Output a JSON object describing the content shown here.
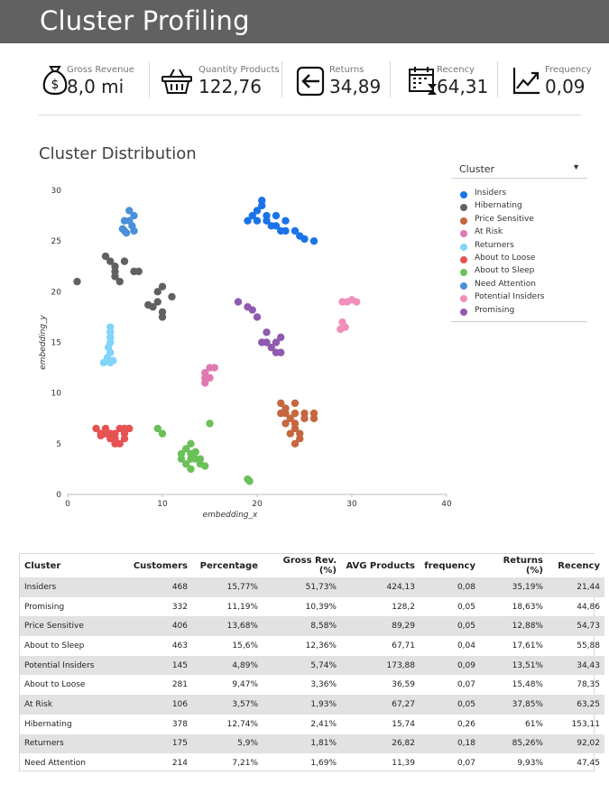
{
  "header": {
    "title": "Cluster Profiling"
  },
  "kpis": [
    {
      "label": "Gross Revenue",
      "value": "8,0 mi",
      "icon": "money-bag-icon"
    },
    {
      "label": "Quantity Products",
      "value": "122,76",
      "icon": "basket-icon"
    },
    {
      "label": "Returns",
      "value": "34,89",
      "icon": "return-arrow-icon"
    },
    {
      "label": "Recency",
      "value": "64,31",
      "icon": "calendar-icon"
    },
    {
      "label": "Frequency",
      "value": "0,09",
      "icon": "trend-chart-icon"
    }
  ],
  "section": {
    "title": "Cluster Distribution"
  },
  "legend": {
    "control_label": "Cluster",
    "items": [
      {
        "name": "Insiders",
        "color": "#1a73e8"
      },
      {
        "name": "Hibernating",
        "color": "#616161"
      },
      {
        "name": "Price Sensitive",
        "color": "#c5673f"
      },
      {
        "name": "At Risk",
        "color": "#e079b1"
      },
      {
        "name": "Returners",
        "color": "#81d4fa"
      },
      {
        "name": "About to Loose",
        "color": "#e55353"
      },
      {
        "name": "About to Sleep",
        "color": "#6cc05a"
      },
      {
        "name": "Need Attention",
        "color": "#4a90d9"
      },
      {
        "name": "Potential Insiders",
        "color": "#f18fba"
      },
      {
        "name": "Promising",
        "color": "#8e5bb0"
      }
    ]
  },
  "chart_data": {
    "type": "scatter",
    "xlabel": "embedding_x",
    "ylabel": "embedding_y",
    "xlim": [
      0,
      40
    ],
    "ylim": [
      0,
      30
    ],
    "xticks": [
      "0",
      "10",
      "20",
      "30",
      "40"
    ],
    "yticks": [
      "0",
      "5",
      "10",
      "15",
      "20",
      "25",
      "30"
    ],
    "series": [
      {
        "name": "Insiders",
        "points": [
          [
            19,
            27
          ],
          [
            19.5,
            27.5
          ],
          [
            20,
            28
          ],
          [
            20,
            27
          ],
          [
            20.5,
            28.5
          ],
          [
            21,
            27.5
          ],
          [
            21,
            27
          ],
          [
            22,
            27.5
          ],
          [
            22,
            26.5
          ],
          [
            23,
            27
          ],
          [
            23,
            26
          ],
          [
            24,
            26
          ],
          [
            24.5,
            25.5
          ],
          [
            25,
            25.2
          ],
          [
            26,
            25
          ],
          [
            20.5,
            29
          ],
          [
            21.5,
            26.5
          ],
          [
            22.5,
            26
          ]
        ]
      },
      {
        "name": "Hibernating",
        "points": [
          [
            1,
            21
          ],
          [
            4,
            23.5
          ],
          [
            4.5,
            23
          ],
          [
            5,
            22.5
          ],
          [
            5,
            22
          ],
          [
            5,
            21.5
          ],
          [
            5.5,
            21
          ],
          [
            6,
            23
          ],
          [
            7,
            22
          ],
          [
            7.5,
            22
          ],
          [
            9.5,
            20
          ],
          [
            9.5,
            19
          ],
          [
            9,
            18.5
          ],
          [
            10,
            18
          ],
          [
            10,
            17.5
          ],
          [
            10,
            20.5
          ],
          [
            11,
            19.5
          ],
          [
            8.5,
            18.7
          ]
        ]
      },
      {
        "name": "Price Sensitive",
        "points": [
          [
            22.5,
            9
          ],
          [
            23,
            8.5
          ],
          [
            23,
            8
          ],
          [
            23.5,
            7.5
          ],
          [
            24,
            7
          ],
          [
            24,
            6.5
          ],
          [
            23.5,
            6
          ],
          [
            24.5,
            6
          ],
          [
            25,
            8
          ],
          [
            25,
            7.5
          ],
          [
            24,
            9
          ],
          [
            24,
            8
          ],
          [
            23,
            7
          ],
          [
            22.5,
            8
          ],
          [
            26,
            8
          ],
          [
            26,
            7.5
          ],
          [
            24.5,
            5.5
          ],
          [
            24,
            5
          ]
        ]
      },
      {
        "name": "At Risk",
        "points": [
          [
            14.5,
            11
          ],
          [
            14.5,
            12
          ],
          [
            15,
            12.5
          ],
          [
            15.5,
            12.5
          ],
          [
            15,
            11.5
          ],
          [
            14.5,
            11.5
          ]
        ]
      },
      {
        "name": "Returners",
        "points": [
          [
            4.5,
            16.5
          ],
          [
            4.5,
            16
          ],
          [
            4.5,
            15
          ],
          [
            4.3,
            14.5
          ],
          [
            4.5,
            14
          ],
          [
            4.2,
            13.5
          ],
          [
            4.8,
            13.2
          ],
          [
            4.5,
            13
          ],
          [
            3.8,
            13
          ],
          [
            4.5,
            15.5
          ]
        ]
      },
      {
        "name": "About to Loose",
        "points": [
          [
            3,
            6.5
          ],
          [
            4,
            6.5
          ],
          [
            4.5,
            6
          ],
          [
            5,
            6
          ],
          [
            5,
            5.5
          ],
          [
            5.5,
            5
          ],
          [
            6,
            6.5
          ],
          [
            6,
            6
          ],
          [
            6,
            5.5
          ],
          [
            5,
            5
          ],
          [
            4.5,
            5.5
          ],
          [
            4,
            6
          ],
          [
            3.5,
            6
          ],
          [
            6.5,
            6.5
          ],
          [
            3.5,
            5.8
          ],
          [
            5.5,
            6.5
          ]
        ]
      },
      {
        "name": "About to Sleep",
        "points": [
          [
            9.5,
            6.5
          ],
          [
            10,
            6
          ],
          [
            12,
            4
          ],
          [
            12.5,
            4.5
          ],
          [
            13,
            4
          ],
          [
            13,
            3.5
          ],
          [
            13.5,
            3.5
          ],
          [
            13,
            5
          ],
          [
            14,
            3.5
          ],
          [
            14,
            3
          ],
          [
            14.5,
            2.8
          ],
          [
            13,
            2.5
          ],
          [
            12,
            3.5
          ],
          [
            15,
            7
          ],
          [
            19,
            1.5
          ],
          [
            19.2,
            1.3
          ],
          [
            13.5,
            4.2
          ],
          [
            12.5,
            3
          ]
        ]
      },
      {
        "name": "Need Attention",
        "points": [
          [
            6.5,
            28
          ],
          [
            6.5,
            27
          ],
          [
            6.8,
            26.5
          ],
          [
            6,
            26
          ],
          [
            6,
            27
          ],
          [
            7,
            27.5
          ],
          [
            5.8,
            26.2
          ],
          [
            6.2,
            25.8
          ],
          [
            7,
            26
          ]
        ]
      },
      {
        "name": "Potential Insiders",
        "points": [
          [
            29,
            19
          ],
          [
            30,
            19.2
          ],
          [
            30.5,
            19
          ],
          [
            29.5,
            19
          ],
          [
            29,
            17
          ],
          [
            29.3,
            16.5
          ],
          [
            28.8,
            16.3
          ]
        ]
      },
      {
        "name": "Promising",
        "points": [
          [
            18,
            19
          ],
          [
            19,
            18.5
          ],
          [
            20,
            17.5
          ],
          [
            21,
            16
          ],
          [
            21,
            15
          ],
          [
            21.5,
            14.5
          ],
          [
            22,
            15
          ],
          [
            22.5,
            15.5
          ],
          [
            22,
            14
          ],
          [
            22.5,
            14
          ],
          [
            20.5,
            15
          ],
          [
            19.5,
            18.2
          ]
        ]
      }
    ]
  },
  "table": {
    "headers": [
      "Cluster",
      "Customers",
      "Percentage",
      "Gross Rev. (%)",
      "AVG Products",
      "frequency",
      "Returns (%)",
      "Recency"
    ],
    "rows": [
      [
        "Insiders",
        "468",
        "15,77%",
        "51,73%",
        "424,13",
        "0,08",
        "35,19%",
        "21,44"
      ],
      [
        "Promising",
        "332",
        "11,19%",
        "10,39%",
        "128,2",
        "0,05",
        "18,63%",
        "44,86"
      ],
      [
        "Price Sensitive",
        "406",
        "13,68%",
        "8,58%",
        "89,29",
        "0,05",
        "12,88%",
        "54,73"
      ],
      [
        "About to Sleep",
        "463",
        "15,6%",
        "12,36%",
        "67,71",
        "0,04",
        "17,61%",
        "55,88"
      ],
      [
        "Potential Insiders",
        "145",
        "4,89%",
        "5,74%",
        "173,88",
        "0,09",
        "13,51%",
        "34,43"
      ],
      [
        "About to Loose",
        "281",
        "9,47%",
        "3,36%",
        "36,59",
        "0,07",
        "15,48%",
        "78,35"
      ],
      [
        "At Risk",
        "106",
        "3,57%",
        "1,93%",
        "67,27",
        "0,05",
        "37,85%",
        "63,25"
      ],
      [
        "Hibernating",
        "378",
        "12,74%",
        "2,41%",
        "15,74",
        "0,26",
        "61%",
        "153,11"
      ],
      [
        "Returners",
        "175",
        "5,9%",
        "1,81%",
        "26,82",
        "0,18",
        "85,26%",
        "92,02"
      ],
      [
        "Need Attention",
        "214",
        "7,21%",
        "1,69%",
        "11,39",
        "0,07",
        "9,93%",
        "47,45"
      ]
    ]
  }
}
